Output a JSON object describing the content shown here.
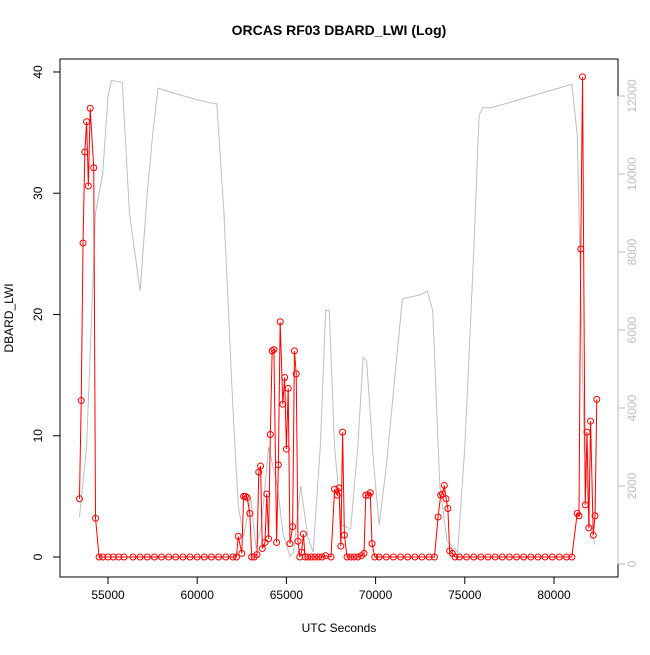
{
  "chart_data": {
    "type": "line",
    "title": "ORCAS RF03 DBARD_LWI (Log)",
    "x_label": "UTC Seconds",
    "y_label": "DBARD_LWI",
    "xlim": [
      52309,
      83587
    ],
    "xticks": [
      55000,
      60000,
      65000,
      70000,
      75000,
      80000
    ],
    "ylim": [
      -1.65,
      41.07
    ],
    "yticks": [
      0,
      10,
      20,
      30,
      40
    ],
    "y2lim": [
      -333,
      12949
    ],
    "y2ticks": [
      0,
      2000,
      4000,
      6000,
      8000,
      10000,
      12000
    ],
    "series": [
      {
        "color": "#ff0000",
        "marker": "circle",
        "x": [
          53400,
          53500,
          53600,
          53700,
          53800,
          53900,
          54000,
          54200,
          54300,
          54500,
          54700,
          55000,
          55300,
          55600,
          55900,
          56400,
          56800,
          57200,
          57600,
          58000,
          58400,
          58800,
          59200,
          59600,
          60000,
          60400,
          60800,
          61200,
          61600,
          62000,
          62200,
          62300,
          62500,
          62600,
          62700,
          62800,
          62950,
          63050,
          63200,
          63350,
          63450,
          63550,
          63650,
          63800,
          63900,
          64000,
          64100,
          64200,
          64300,
          64450,
          64550,
          64650,
          64800,
          64900,
          65000,
          65100,
          65200,
          65350,
          65450,
          65550,
          65650,
          65750,
          65850,
          65950,
          66050,
          66200,
          66400,
          66600,
          66800,
          67000,
          67200,
          67500,
          67700,
          67850,
          67950,
          68050,
          68150,
          68250,
          68400,
          68600,
          68800,
          69000,
          69200,
          69350,
          69450,
          69600,
          69700,
          69800,
          69950,
          70200,
          70600,
          71000,
          71400,
          71800,
          72200,
          72600,
          73000,
          73300,
          73500,
          73650,
          73750,
          73850,
          73950,
          74050,
          74150,
          74300,
          74450,
          74700,
          75100,
          75500,
          75900,
          76300,
          76700,
          77100,
          77500,
          77900,
          78300,
          78700,
          79100,
          79500,
          79900,
          80300,
          80700,
          81000,
          81300,
          81400,
          81500,
          81600,
          81750,
          81850,
          81950,
          82050,
          82200,
          82300,
          82400
        ],
        "values": [
          4.8,
          12.9,
          25.9,
          33.4,
          35.9,
          30.6,
          37.0,
          32.1,
          3.2,
          0,
          0,
          0,
          0,
          0,
          0,
          0,
          0,
          0,
          0,
          0,
          0,
          0,
          0,
          0,
          0,
          0,
          0,
          0,
          0,
          0,
          0,
          1.7,
          0.3,
          5.0,
          5.0,
          4.9,
          3.6,
          0,
          0,
          0.2,
          7.0,
          7.5,
          0.7,
          1.2,
          5.2,
          1.5,
          10.1,
          17.0,
          17.1,
          1.2,
          7.6,
          19.4,
          12.6,
          14.8,
          8.9,
          13.9,
          1.1,
          2.5,
          17.0,
          15.1,
          1.3,
          0,
          0.4,
          1.9,
          0,
          0,
          0,
          0,
          0,
          0,
          0.1,
          0,
          5.6,
          5.1,
          5.7,
          0.9,
          10.3,
          1.8,
          0,
          0,
          0,
          0,
          0.1,
          0.3,
          5.1,
          5.1,
          5.3,
          1.1,
          0,
          0,
          0,
          0,
          0,
          0,
          0,
          0,
          0,
          0,
          3.3,
          5.1,
          5.2,
          5.9,
          4.8,
          4.0,
          0.5,
          0.3,
          0,
          0,
          0,
          0,
          0,
          0,
          0,
          0,
          0,
          0,
          0,
          0,
          0,
          0,
          0,
          0,
          0,
          0,
          3.6,
          3.4,
          25.4,
          39.6,
          4.3,
          10.3,
          2.4,
          11.2,
          1.8,
          3.4,
          13.0
        ]
      },
      {
        "color": "#bebebe",
        "axis": "y2",
        "x": [
          53400,
          53800,
          54300,
          54700,
          55000,
          55200,
          55800,
          56200,
          56800,
          57200,
          57500,
          57800,
          58500,
          60000,
          61000,
          61100,
          61500,
          62000,
          62300,
          62600,
          63000,
          63300,
          63600,
          64000,
          64500,
          64800,
          65200,
          65400,
          65800,
          66200,
          66500,
          66900,
          67200,
          67400,
          67700,
          68100,
          68600,
          69000,
          69300,
          69500,
          69900,
          70200,
          70600,
          71500,
          72500,
          72900,
          73200,
          73600,
          74000,
          74600,
          75000,
          75500,
          75800,
          76000,
          76500,
          78000,
          81000,
          81300,
          81500,
          81700,
          82000,
          82300
        ],
        "values": [
          1200,
          3000,
          9000,
          10000,
          12000,
          12400,
          12350,
          9000,
          7000,
          9500,
          11000,
          12200,
          12100,
          11900,
          11800,
          11800,
          9000,
          4000,
          1500,
          700,
          1700,
          400,
          1000,
          3000,
          2000,
          800,
          200,
          300,
          2000,
          700,
          300,
          3000,
          6500,
          6500,
          3000,
          1000,
          900,
          3000,
          5300,
          5200,
          2500,
          1000,
          2500,
          6800,
          6900,
          7000,
          6500,
          2000,
          600,
          300,
          3000,
          8000,
          11500,
          11700,
          11700,
          11900,
          12300,
          11000,
          7000,
          3000,
          1000,
          500
        ]
      }
    ]
  }
}
